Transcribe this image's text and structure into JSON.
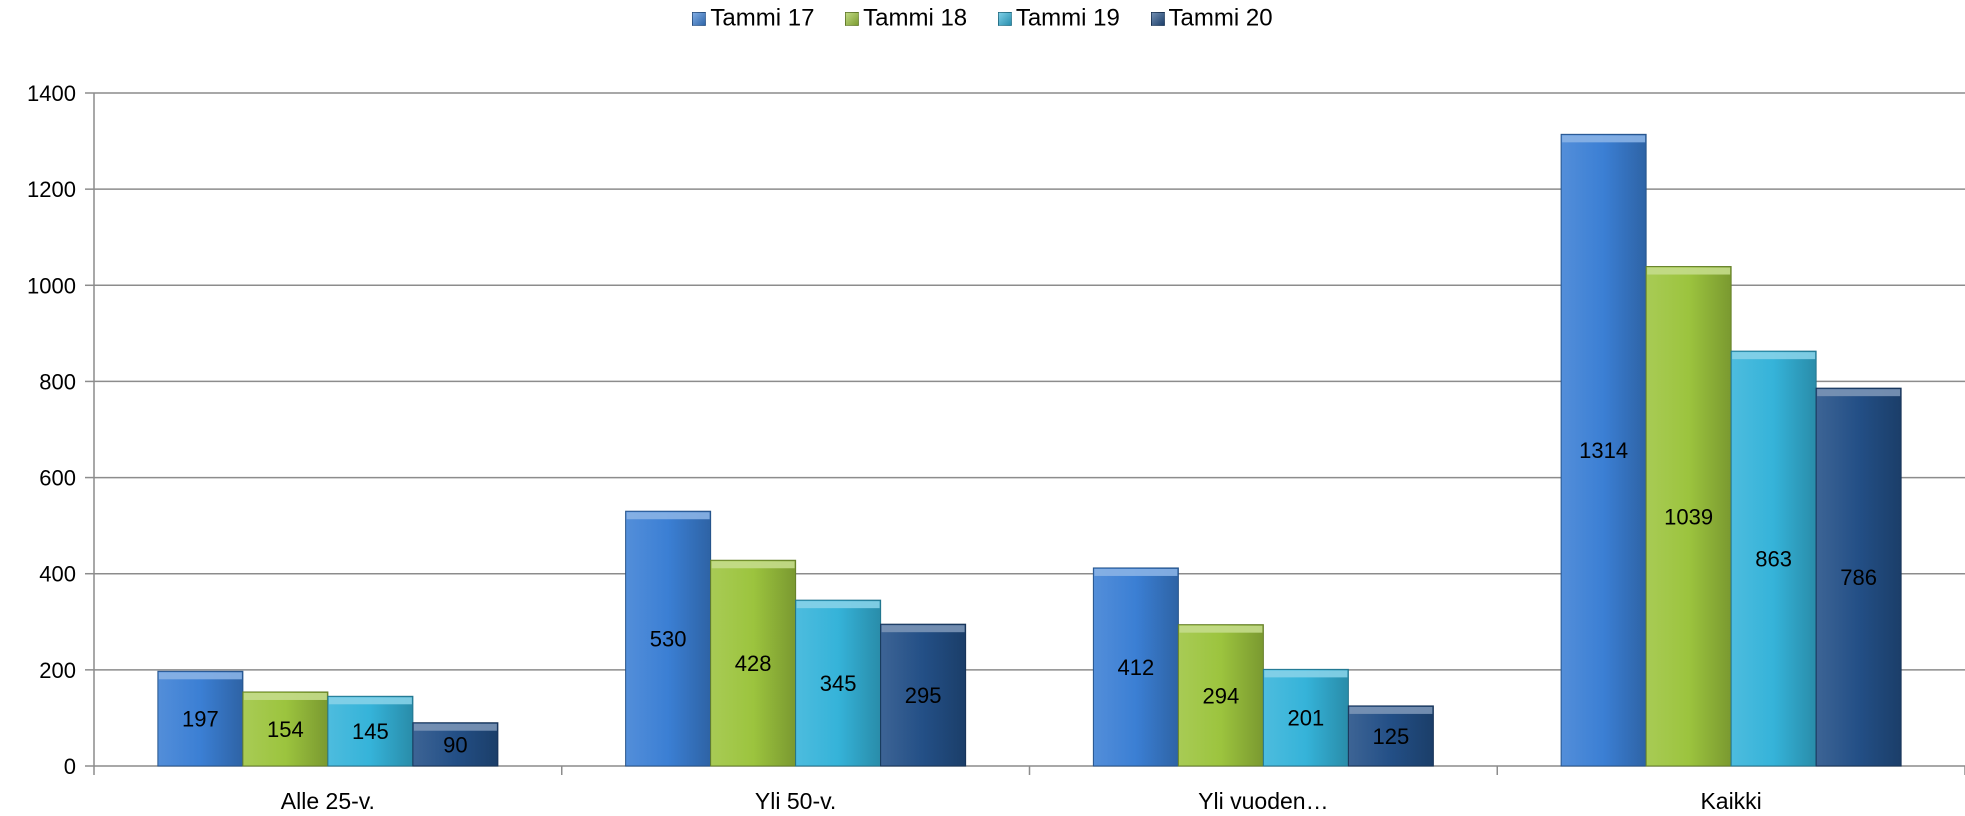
{
  "chart_data": {
    "type": "bar",
    "categories": [
      "Alle 25-v.",
      "Yli 50-v.",
      "Yli vuoden…",
      "Kaikki"
    ],
    "series": [
      {
        "name": "Tammi 17",
        "values": [
          197,
          530,
          412,
          1314
        ],
        "color": "#3b7fd4"
      },
      {
        "name": "Tammi 18",
        "values": [
          154,
          428,
          294,
          1039
        ],
        "color": "#9cc43e"
      },
      {
        "name": "Tammi 19",
        "values": [
          145,
          345,
          201,
          863
        ],
        "color": "#35b3d9"
      },
      {
        "name": "Tammi 20",
        "values": [
          90,
          295,
          125,
          786
        ],
        "color": "#234f86"
      }
    ],
    "y_ticks": [
      "0",
      "200",
      "400",
      "600",
      "800",
      "1000",
      "1200",
      "1400"
    ],
    "ylim": [
      0,
      1400
    ],
    "title": "",
    "xlabel": "",
    "ylabel": "",
    "grid": true,
    "legend_position": "top-center",
    "data_labels": true
  }
}
